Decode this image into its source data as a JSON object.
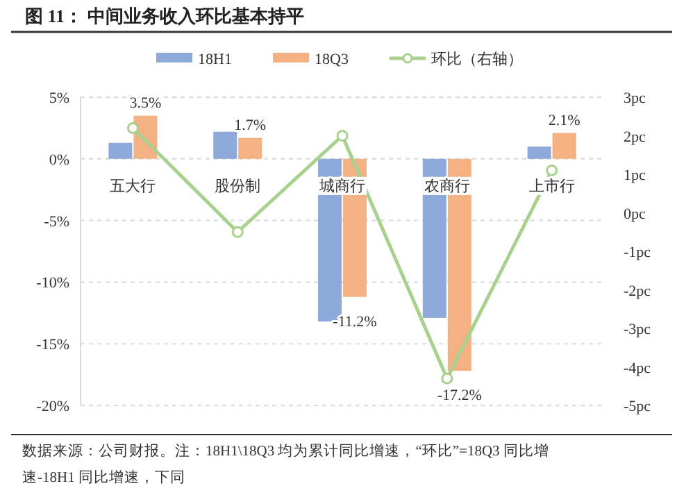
{
  "chart_data": {
    "type": "bar",
    "title": "图 11：   中间业务收入环比基本持平",
    "categories": [
      "五大行",
      "股份制",
      "城商行",
      "农商行",
      "上市行"
    ],
    "series": [
      {
        "name": "18H1",
        "color": "#8eaadb",
        "values": [
          1.3,
          2.2,
          -13.2,
          -12.9,
          1.0
        ]
      },
      {
        "name": "18Q3",
        "color": "#f4b183",
        "values": [
          3.5,
          1.7,
          -11.2,
          -17.2,
          2.1
        ],
        "value_labels": [
          "3.5%",
          "1.7%",
          "-11.2%",
          "-17.2%",
          "2.1%"
        ]
      },
      {
        "name": "环比（右轴）",
        "type": "line",
        "axis": "y2",
        "color": "#a9d18e",
        "marker": "circle",
        "values": [
          2.2,
          -0.5,
          2.0,
          -4.3,
          1.1
        ]
      }
    ],
    "ylim": [
      -20,
      5
    ],
    "yticks": [
      {
        "value": 5,
        "label": "5%"
      },
      {
        "value": 0,
        "label": "0%"
      },
      {
        "value": -5,
        "label": "-5%"
      },
      {
        "value": -10,
        "label": "-10%"
      },
      {
        "value": -15,
        "label": "-15%"
      },
      {
        "value": -20,
        "label": "-20%"
      }
    ],
    "y2lim": [
      -5,
      3
    ],
    "y2ticks": [
      {
        "value": 3,
        "label": "3pc"
      },
      {
        "value": 2,
        "label": "2pc"
      },
      {
        "value": 1,
        "label": "1pc"
      },
      {
        "value": 0,
        "label": "0pc"
      },
      {
        "value": -1,
        "label": "-1pc"
      },
      {
        "value": -2,
        "label": "-2pc"
      },
      {
        "value": -3,
        "label": "-3pc"
      },
      {
        "value": -4,
        "label": "-4pc"
      },
      {
        "value": -5,
        "label": "-5pc"
      }
    ],
    "grid": "y",
    "legend": "top",
    "annotations": [
      "数据来源：公司财报。注：18H1\\18Q3 均为累计同比增速，“环比”=18Q3 同比增速-18H1 同比增速，下同"
    ]
  }
}
